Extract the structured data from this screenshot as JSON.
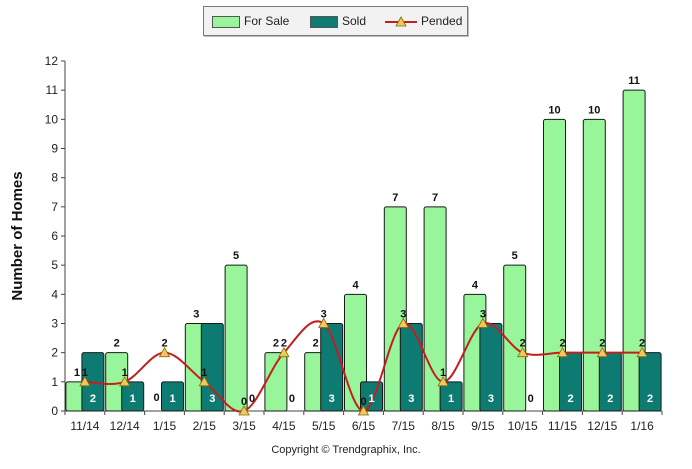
{
  "chart_data": {
    "type": "bar",
    "categories": [
      "11/14",
      "12/14",
      "1/15",
      "2/15",
      "3/15",
      "4/15",
      "5/15",
      "6/15",
      "7/15",
      "8/15",
      "9/15",
      "10/15",
      "11/15",
      "12/15",
      "1/16"
    ],
    "series": [
      {
        "name": "For Sale",
        "type": "bar",
        "color": "#99f599",
        "values": [
          1,
          2,
          0,
          3,
          5,
          2,
          2,
          4,
          7,
          7,
          4,
          5,
          10,
          10,
          11
        ]
      },
      {
        "name": "Sold",
        "type": "bar",
        "color": "#0e7b73",
        "values": [
          2,
          1,
          1,
          3,
          0,
          0,
          3,
          1,
          3,
          1,
          3,
          0,
          2,
          2,
          2
        ]
      },
      {
        "name": "Pended",
        "type": "line",
        "color": "#c21f1f",
        "marker_color": "#f0c860",
        "values": [
          1,
          1,
          2,
          1,
          0,
          2,
          3,
          0,
          3,
          1,
          3,
          2,
          2,
          2,
          2
        ]
      }
    ],
    "ylabel": "Number of Homes",
    "ylim": [
      0,
      12
    ],
    "yticks": [
      0,
      1,
      2,
      3,
      4,
      5,
      6,
      7,
      8,
      9,
      10,
      11,
      12
    ],
    "grid": false,
    "legend_position": "top-center"
  },
  "legend": {
    "items": [
      {
        "label": "For Sale",
        "color": "#99f599"
      },
      {
        "label": "Sold",
        "color": "#0e7b73"
      },
      {
        "label": "Pended",
        "color": "#c21f1f"
      }
    ]
  },
  "footer": {
    "copyright": "Copyright © Trendgraphix, Inc."
  }
}
